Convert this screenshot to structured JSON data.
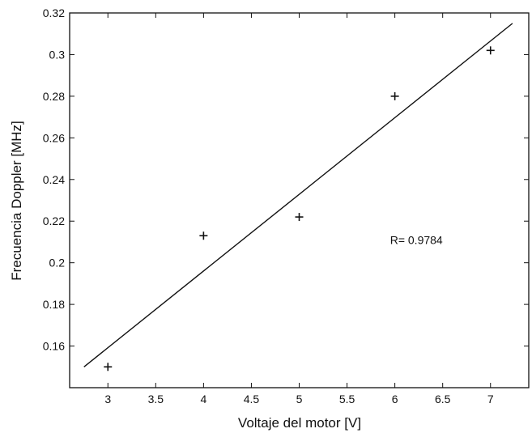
{
  "chart_data": {
    "type": "scatter",
    "title": "",
    "xlabel": "Voltaje del motor [V]",
    "ylabel": "Frecuencia Doppler [MHz]",
    "xlim": [
      2.6,
      7.4
    ],
    "ylim": [
      0.14,
      0.32
    ],
    "xticks": [
      3,
      3.5,
      4,
      4.5,
      5,
      5.5,
      6,
      6.5,
      7
    ],
    "xtick_labels": [
      "3",
      "3.5",
      "4",
      "4.5",
      "5",
      "5.5",
      "6",
      "6.5",
      "7"
    ],
    "yticks": [
      0.16,
      0.18,
      0.2,
      0.22,
      0.24,
      0.26,
      0.28,
      0.3,
      0.32
    ],
    "ytick_labels": [
      "0.16",
      "0.18",
      "0.2",
      "0.22",
      "0.24",
      "0.26",
      "0.28",
      "0.3",
      "0.32"
    ],
    "grid": false,
    "series": [
      {
        "marker": "+",
        "color": "#111111",
        "x": [
          3,
          4,
          5,
          6,
          7
        ],
        "y": [
          0.15,
          0.213,
          0.222,
          0.28,
          0.302
        ]
      }
    ],
    "fit_line": {
      "color": "#111111",
      "x": [
        2.75,
        7.23
      ],
      "y": [
        0.15,
        0.315
      ]
    },
    "annotation": {
      "text": "R= 0.9784",
      "x": 5.95,
      "y": 0.209
    }
  }
}
